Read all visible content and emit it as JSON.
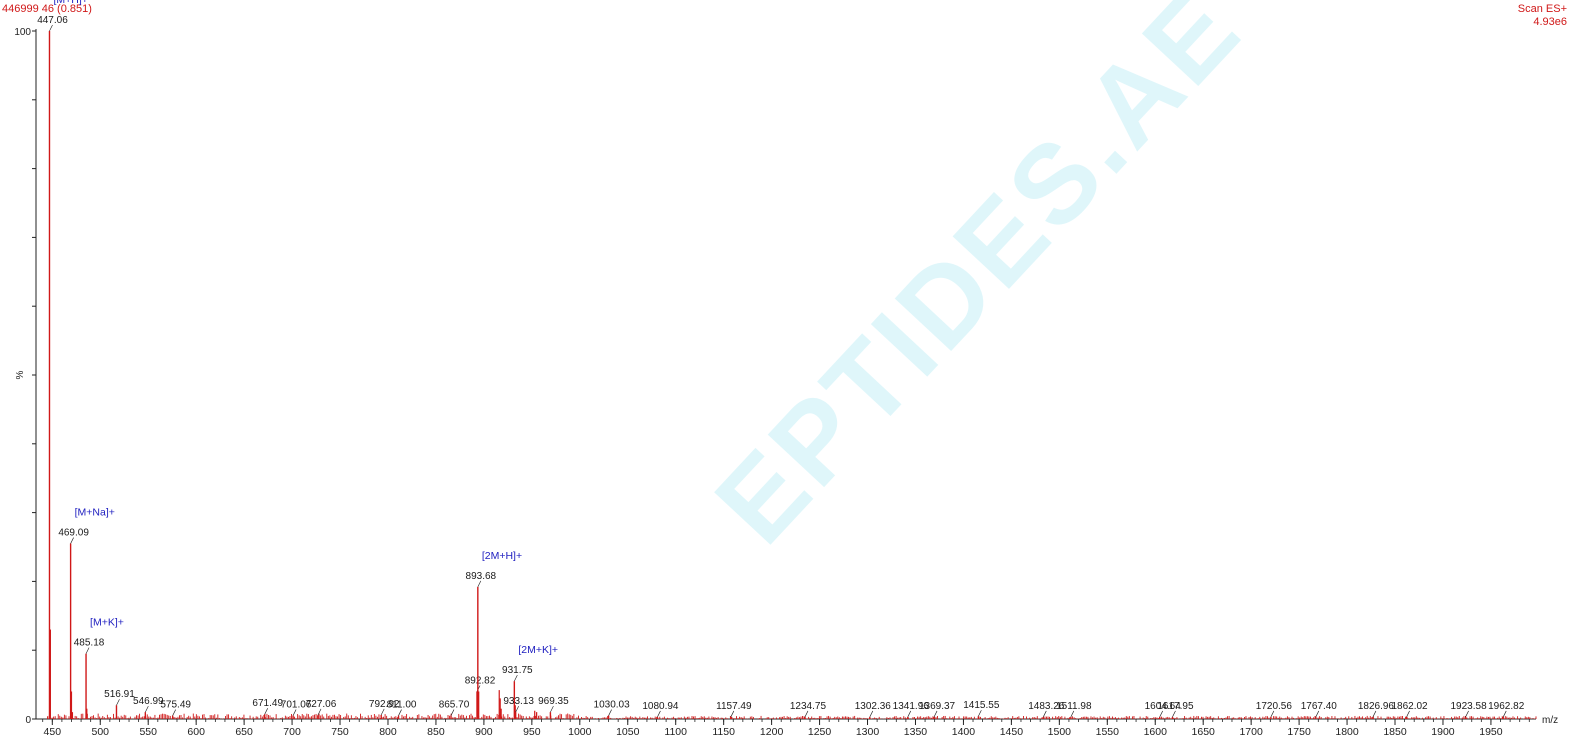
{
  "header": {
    "left_text": "446999 46 (0.851)",
    "right_line1": "Scan ES+",
    "right_line2": "4.93e6"
  },
  "watermark": "EPTIDES.AE",
  "colors": {
    "peak": "#d01818",
    "label": "#1a1a1a",
    "adduct": "#2020c0",
    "axis": "#222222",
    "header": "#d01818"
  },
  "chart_data": {
    "type": "line",
    "subtype": "mass-spectrum-stick",
    "xlabel": "m/z",
    "ylabel": "%",
    "xlim": [
      433,
      1997
    ],
    "ylim": [
      0,
      100
    ],
    "x_ticks": [
      450,
      500,
      550,
      600,
      650,
      700,
      750,
      800,
      850,
      900,
      950,
      1000,
      1050,
      1100,
      1150,
      1200,
      1250,
      1300,
      1350,
      1400,
      1450,
      1500,
      1550,
      1600,
      1650,
      1700,
      1750,
      1800,
      1850,
      1900,
      1950
    ],
    "y_ticks": [
      0,
      100
    ],
    "labeled_peaks": [
      {
        "mz": 447.06,
        "intensity": 100,
        "label": "447.06"
      },
      {
        "mz": 469.09,
        "intensity": 25.5,
        "label": "469.09"
      },
      {
        "mz": 485.18,
        "intensity": 9.5,
        "label": "485.18"
      },
      {
        "mz": 516.91,
        "intensity": 2.0,
        "label": "516.91"
      },
      {
        "mz": 546.99,
        "intensity": 1.0,
        "label": "546.99"
      },
      {
        "mz": 575.49,
        "intensity": 0.5,
        "label": "575.49"
      },
      {
        "mz": 671.49,
        "intensity": 0.7,
        "label": "671.49"
      },
      {
        "mz": 701.06,
        "intensity": 0.5,
        "label": "701.06"
      },
      {
        "mz": 727.06,
        "intensity": 0.6,
        "label": "727.06"
      },
      {
        "mz": 792.92,
        "intensity": 0.6,
        "label": "792.92"
      },
      {
        "mz": 811.0,
        "intensity": 0.5,
        "label": "811.00"
      },
      {
        "mz": 865.7,
        "intensity": 0.5,
        "label": "865.70"
      },
      {
        "mz": 892.82,
        "intensity": 4.0,
        "label": "892.82"
      },
      {
        "mz": 893.68,
        "intensity": 19.2,
        "label": "893.68"
      },
      {
        "mz": 931.75,
        "intensity": 5.5,
        "label": "931.75"
      },
      {
        "mz": 933.13,
        "intensity": 1.0,
        "label": "933.13"
      },
      {
        "mz": 969.35,
        "intensity": 1.0,
        "label": "969.35"
      },
      {
        "mz": 1030.03,
        "intensity": 0.5,
        "label": "1030.03"
      },
      {
        "mz": 1080.94,
        "intensity": 0.3,
        "label": "1080.94"
      },
      {
        "mz": 1157.49,
        "intensity": 0.3,
        "label": "1157.49"
      },
      {
        "mz": 1234.75,
        "intensity": 0.3,
        "label": "1234.75"
      },
      {
        "mz": 1302.36,
        "intensity": 0.3,
        "label": "1302.36"
      },
      {
        "mz": 1341.96,
        "intensity": 0.3,
        "label": "1341.96"
      },
      {
        "mz": 1369.37,
        "intensity": 0.3,
        "label": "1369.37"
      },
      {
        "mz": 1415.55,
        "intensity": 0.4,
        "label": "1415.55"
      },
      {
        "mz": 1483.26,
        "intensity": 0.3,
        "label": "1483.26"
      },
      {
        "mz": 1511.98,
        "intensity": 0.3,
        "label": "1511.98"
      },
      {
        "mz": 1604.64,
        "intensity": 0.3,
        "label": "1604.64"
      },
      {
        "mz": 1617.95,
        "intensity": 0.3,
        "label": "1617.95"
      },
      {
        "mz": 1720.56,
        "intensity": 0.3,
        "label": "1720.56"
      },
      {
        "mz": 1767.4,
        "intensity": 0.3,
        "label": "1767.40"
      },
      {
        "mz": 1826.96,
        "intensity": 0.3,
        "label": "1826.96"
      },
      {
        "mz": 1862.02,
        "intensity": 0.3,
        "label": "1862.02"
      },
      {
        "mz": 1923.58,
        "intensity": 0.3,
        "label": "1923.58"
      },
      {
        "mz": 1962.82,
        "intensity": 0.3,
        "label": "1962.82"
      }
    ],
    "unlabeled_peaks": [
      {
        "mz": 448.0,
        "intensity": 13.0
      },
      {
        "mz": 470.0,
        "intensity": 4.0
      },
      {
        "mz": 471.0,
        "intensity": 1.0
      },
      {
        "mz": 486.0,
        "intensity": 1.5
      },
      {
        "mz": 894.6,
        "intensity": 4.0
      },
      {
        "mz": 916.0,
        "intensity": 4.2
      },
      {
        "mz": 917.0,
        "intensity": 3.0
      },
      {
        "mz": 918.0,
        "intensity": 1.5
      },
      {
        "mz": 932.7,
        "intensity": 2.0
      },
      {
        "mz": 953.0,
        "intensity": 1.2
      },
      {
        "mz": 955.0,
        "intensity": 1.0
      }
    ],
    "annotations": [
      {
        "text": "[M+H]+",
        "mz": 447.06
      },
      {
        "text": "[M+Na]+",
        "mz": 469.09
      },
      {
        "text": "[M+K]+",
        "mz": 485.18
      },
      {
        "text": "[2M+H]+",
        "mz": 893.68
      },
      {
        "text": "[2M+K]+",
        "mz": 931.75
      }
    ]
  }
}
